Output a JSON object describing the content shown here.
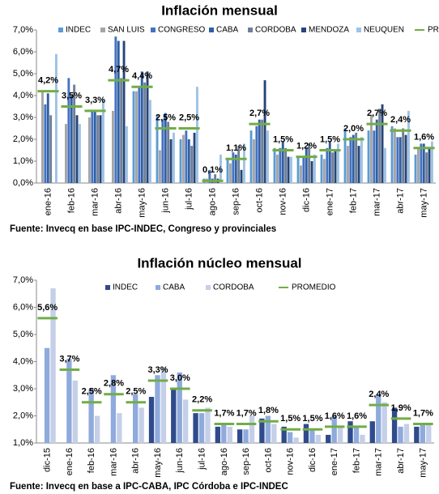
{
  "chart_data": [
    {
      "type": "bar",
      "title": "Inflación mensual",
      "source": "Fuente: Invecq en base IPC-INDEC, Congreso y provinciales",
      "categories": [
        "ene-16",
        "feb-16",
        "mar-16",
        "abr-16",
        "may-16",
        "jun-16",
        "jul-16",
        "ago-16",
        "sep-16",
        "oct-16",
        "nov-16",
        "dic-16",
        "ene-17",
        "feb-17",
        "mar-17",
        "abr-17",
        "may-17"
      ],
      "series": [
        {
          "name": "INDEC",
          "color": "#5b9bd5",
          "values": [
            null,
            null,
            null,
            null,
            4.2,
            3.1,
            2.0,
            0.2,
            1.1,
            2.4,
            1.6,
            1.2,
            1.3,
            2.5,
            2.4,
            2.6,
            1.3
          ]
        },
        {
          "name": "SAN LUIS",
          "color": "#a5a5a5",
          "values": [
            4.2,
            2.7,
            3.0,
            3.3,
            4.2,
            1.5,
            2.2,
            0.2,
            0.9,
            2.0,
            1.3,
            0.8,
            1.1,
            1.7,
            3.1,
            2.5,
            1.6
          ]
        },
        {
          "name": "CONGRESO",
          "color": "#4472c4",
          "values": [
            3.6,
            4.8,
            3.3,
            6.7,
            4.4,
            2.9,
            2.4,
            0.6,
            1.4,
            2.6,
            1.6,
            1.2,
            1.6,
            2.1,
            2.4,
            2.1,
            1.8
          ]
        },
        {
          "name": "CABA",
          "color": "#2e5fa3",
          "values": [
            4.1,
            4.0,
            3.3,
            6.5,
            5.1,
            3.2,
            2.0,
            0.2,
            1.3,
            2.9,
            1.9,
            1.6,
            1.9,
            2.2,
            2.9,
            2.1,
            1.8
          ]
        },
        {
          "name": "CORDOBA",
          "color": "#6f7f96",
          "values": [
            3.1,
            4.5,
            3.1,
            4.8,
            4.6,
            2.8,
            1.7,
            0.4,
            1.7,
            2.9,
            1.6,
            1.8,
            1.4,
            2.3,
            3.4,
            2.5,
            1.4
          ]
        },
        {
          "name": "MENDOZA",
          "color": "#264478",
          "values": [
            null,
            3.1,
            3.1,
            6.5,
            5.1,
            2.0,
            2.3,
            0.2,
            0.6,
            4.7,
            1.2,
            1.0,
            1.5,
            1.7,
            3.6,
            2.2,
            1.6
          ]
        },
        {
          "name": "NEUQUEN",
          "color": "#9dc3e6",
          "values": [
            5.9,
            2.7,
            3.8,
            2.6,
            3.8,
            2.3,
            4.4,
            1.3,
            1.8,
            2.4,
            1.2,
            1.3,
            1.8,
            2.1,
            1.6,
            3.3,
            1.9
          ]
        }
      ],
      "average": {
        "name": "PROMEDIO",
        "color": "#70ad47",
        "values": [
          4.2,
          3.5,
          3.3,
          4.7,
          4.4,
          2.5,
          2.5,
          0.1,
          1.1,
          2.7,
          1.5,
          1.2,
          1.5,
          2.0,
          2.7,
          2.4,
          1.6
        ],
        "value_labels": [
          "4,2%",
          "3,5%",
          "3,3%",
          "4,7%",
          "4,4%",
          "2,5%",
          "2,5%",
          "0,1%",
          "1,1%",
          "2,7%",
          "1,5%",
          "1,2%",
          "1,5%",
          "2,0%",
          "2,7%",
          "2,4%",
          "1,6%"
        ]
      },
      "ylim": [
        0,
        7
      ],
      "yticks": [
        {
          "value": 0,
          "label": "0,0%"
        },
        {
          "value": 1,
          "label": "1,0%"
        },
        {
          "value": 2,
          "label": "2,0%"
        },
        {
          "value": 3,
          "label": "3,0%"
        },
        {
          "value": 4,
          "label": "4,0%"
        },
        {
          "value": 5,
          "label": "5,0%"
        },
        {
          "value": 6,
          "label": "6,0%"
        },
        {
          "value": 7,
          "label": "7,0%"
        }
      ],
      "grid": false,
      "legend": "top"
    },
    {
      "type": "bar",
      "title": "Inflación núcleo mensual",
      "source": "Fuente: Invecq en base a IPC-CABA, IPC Córdoba e IPC-INDEC",
      "categories": [
        "dic-15",
        "ene-16",
        "feb-16",
        "mar-16",
        "abr-16",
        "may-16",
        "jun-16",
        "jul-16",
        "ago-16",
        "sep-16",
        "oct-16",
        "nov-16",
        "dic-16",
        "ene-17",
        "feb-17",
        "mar-17",
        "abr-17",
        "may-17"
      ],
      "series": [
        {
          "name": "INDEC",
          "color": "#2f4b8c",
          "values": [
            null,
            null,
            null,
            null,
            null,
            2.7,
            3.0,
            2.1,
            1.6,
            1.5,
            1.9,
            1.6,
            1.7,
            1.3,
            1.8,
            1.8,
            2.3,
            1.6
          ]
        },
        {
          "name": "CABA",
          "color": "#8faadc",
          "values": [
            4.5,
            4.1,
            3.0,
            3.5,
            2.8,
            3.5,
            3.6,
            2.1,
            1.7,
            1.5,
            2.0,
            1.4,
            1.5,
            2.0,
            1.6,
            2.8,
            1.6,
            1.7
          ]
        },
        {
          "name": "CORDOBA",
          "color": "#c5cfe8",
          "values": [
            6.7,
            3.3,
            2.0,
            2.1,
            2.3,
            3.8,
            2.6,
            2.3,
            1.6,
            2.0,
            1.7,
            1.2,
            1.3,
            1.6,
            1.3,
            2.5,
            1.7,
            1.7
          ]
        }
      ],
      "average": {
        "name": "PROMEDIO",
        "color": "#70ad47",
        "values": [
          5.6,
          3.7,
          2.5,
          2.8,
          2.5,
          3.3,
          3.0,
          2.2,
          1.7,
          1.7,
          1.8,
          1.5,
          1.5,
          1.6,
          1.6,
          2.4,
          1.9,
          1.7
        ],
        "value_labels": [
          "5,6%",
          "3,7%",
          "2,5%",
          "2,8%",
          "2,5%",
          "3,3%",
          "3,0%",
          "2,2%",
          "1,7%",
          "1,7%",
          "1,8%",
          "1,5%",
          "1,5%",
          "1,6%",
          "1,6%",
          "2,4%",
          "1,9%",
          "1,7%"
        ]
      },
      "ylim": [
        1,
        7
      ],
      "yticks": [
        {
          "value": 1,
          "label": "1,0%"
        },
        {
          "value": 2,
          "label": "2,0%"
        },
        {
          "value": 3,
          "label": "3,0%"
        },
        {
          "value": 4,
          "label": "4,0%"
        },
        {
          "value": 5,
          "label": "5,0%"
        },
        {
          "value": 6,
          "label": "6,0%"
        },
        {
          "value": 7,
          "label": "7,0%"
        }
      ],
      "grid": false,
      "legend": "top"
    }
  ]
}
